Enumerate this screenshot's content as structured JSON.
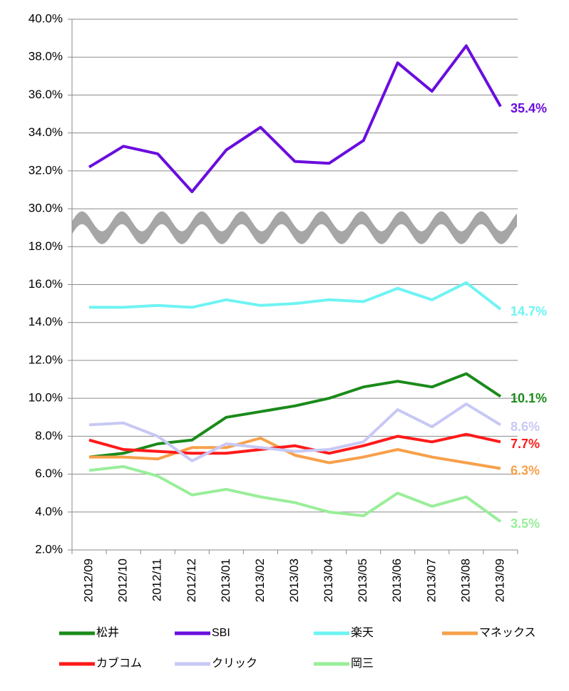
{
  "chart_data": {
    "type": "line",
    "categories": [
      "2012/09",
      "2012/10",
      "2012/11",
      "2012/12",
      "2013/01",
      "2013/02",
      "2013/03",
      "2013/04",
      "2013/05",
      "2013/06",
      "2013/07",
      "2013/08",
      "2013/09"
    ],
    "series": [
      {
        "name": "松井",
        "color": "#1a8a1a",
        "values": [
          6.9,
          7.1,
          7.6,
          7.8,
          9.0,
          9.3,
          9.6,
          10.0,
          10.6,
          10.9,
          10.6,
          11.3,
          10.1
        ],
        "value_labels": [
          null,
          null,
          null,
          null,
          null,
          null,
          null,
          null,
          null,
          null,
          null,
          null,
          "10.1%"
        ]
      },
      {
        "name": "SBI",
        "color": "#6a0dde",
        "values": [
          32.2,
          33.3,
          32.9,
          30.9,
          33.1,
          34.3,
          32.5,
          32.4,
          33.6,
          37.7,
          36.2,
          38.6,
          35.4
        ],
        "value_labels": [
          null,
          null,
          null,
          null,
          null,
          null,
          null,
          null,
          null,
          null,
          null,
          null,
          "35.4%"
        ]
      },
      {
        "name": "楽天",
        "color": "#6ff3f3",
        "values": [
          14.8,
          14.8,
          14.9,
          14.8,
          15.2,
          14.9,
          15.0,
          15.2,
          15.1,
          15.8,
          15.2,
          16.1,
          14.7
        ],
        "value_labels": [
          null,
          null,
          null,
          null,
          null,
          null,
          null,
          null,
          null,
          null,
          null,
          null,
          "14.7%"
        ]
      },
      {
        "name": "マネックス",
        "color": "#f7a04a",
        "values": [
          6.9,
          6.9,
          6.8,
          7.4,
          7.4,
          7.9,
          7.0,
          6.6,
          6.9,
          7.3,
          6.9,
          6.6,
          6.3
        ],
        "value_labels": [
          null,
          null,
          null,
          null,
          null,
          null,
          null,
          null,
          null,
          null,
          null,
          null,
          "6.3%"
        ]
      },
      {
        "name": "カブコム",
        "color": "#ff1a1a",
        "values": [
          7.8,
          7.3,
          7.2,
          7.1,
          7.1,
          7.3,
          7.5,
          7.1,
          7.5,
          8.0,
          7.7,
          8.1,
          7.7
        ],
        "value_labels": [
          null,
          null,
          null,
          null,
          null,
          null,
          null,
          null,
          null,
          null,
          null,
          null,
          "7.7%"
        ]
      },
      {
        "name": "クリック",
        "color": "#c8c8f5",
        "values": [
          8.6,
          8.7,
          8.0,
          6.7,
          7.6,
          7.4,
          7.2,
          7.3,
          7.7,
          9.4,
          8.5,
          9.7,
          8.6
        ],
        "value_labels": [
          null,
          null,
          null,
          null,
          null,
          null,
          null,
          null,
          null,
          null,
          null,
          null,
          "8.6%"
        ]
      },
      {
        "name": "岡三",
        "color": "#99ee99",
        "values": [
          6.2,
          6.4,
          5.9,
          4.9,
          5.2,
          4.8,
          4.5,
          4.0,
          3.8,
          5.0,
          4.3,
          4.8,
          3.5
        ],
        "value_labels": [
          null,
          null,
          null,
          null,
          null,
          null,
          null,
          null,
          null,
          null,
          null,
          null,
          "3.5%"
        ]
      }
    ],
    "ylim": [
      2,
      40
    ],
    "axis_break": [
      18,
      30
    ],
    "yticks": [
      {
        "value": 2,
        "label": "2.0%"
      },
      {
        "value": 4,
        "label": "4.0%"
      },
      {
        "value": 6,
        "label": "6.0%"
      },
      {
        "value": 8,
        "label": "8.0%"
      },
      {
        "value": 10,
        "label": "10.0%"
      },
      {
        "value": 12,
        "label": "12.0%"
      },
      {
        "value": 14,
        "label": "14.0%"
      },
      {
        "value": 16,
        "label": "16.0%"
      },
      {
        "value": 18,
        "label": "18.0%"
      },
      {
        "value": 30,
        "label": "30.0%"
      },
      {
        "value": 32,
        "label": "32.0%"
      },
      {
        "value": 34,
        "label": "34.0%"
      },
      {
        "value": 36,
        "label": "36.0%"
      },
      {
        "value": 38,
        "label": "38.0%"
      },
      {
        "value": 40,
        "label": "40.0%"
      }
    ],
    "grid": true,
    "legend": "bottom"
  }
}
